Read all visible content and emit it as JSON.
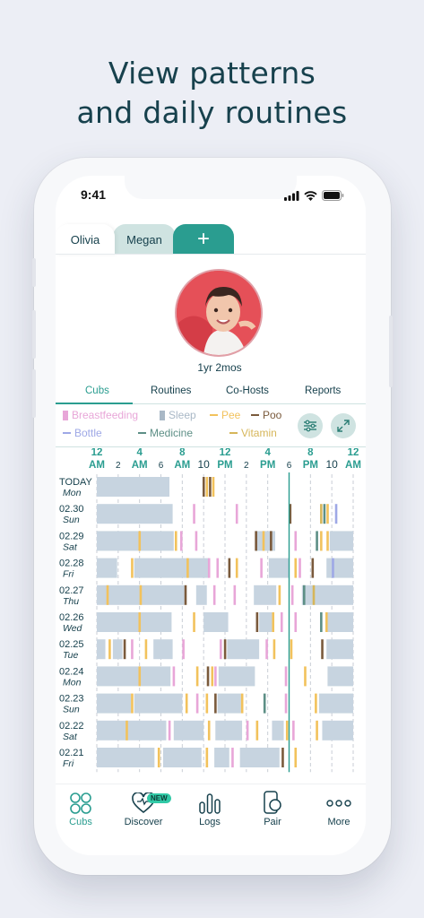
{
  "headline": {
    "line1": "View patterns",
    "line2": "and daily routines"
  },
  "status_bar": {
    "time": "9:41"
  },
  "profile_tabs": [
    {
      "label": "Olivia",
      "active": true
    },
    {
      "label": "Megan",
      "active": false
    }
  ],
  "add_profile_label": "+",
  "profile": {
    "age": "1yr 2mos"
  },
  "sub_tabs": [
    {
      "label": "Cubs",
      "active": true
    },
    {
      "label": "Routines",
      "active": false
    },
    {
      "label": "Co-Hosts",
      "active": false
    },
    {
      "label": "Reports",
      "active": false
    }
  ],
  "legend": [
    {
      "label": "Breastfeeding",
      "color": "#e8a6d8",
      "shape": "square"
    },
    {
      "label": "Sleep",
      "color": "#a9b8c6",
      "shape": "square"
    },
    {
      "label": "Pee",
      "color": "#f2c25c",
      "shape": "dash"
    },
    {
      "label": "Poo",
      "color": "#7a5a3c",
      "shape": "dash"
    },
    {
      "label": "Bottle",
      "color": "#9ea8e6",
      "shape": "dash"
    },
    {
      "label": "Medicine",
      "color": "#5d8f86",
      "shape": "dash"
    },
    {
      "label": "Vitamin",
      "color": "#d6b65a",
      "shape": "dash"
    }
  ],
  "chart_data": {
    "type": "timeline",
    "hours_range": [
      0,
      24
    ],
    "current_time_hour": 18.0,
    "time_ticks": [
      {
        "h": 0,
        "top": "12",
        "bottom": "AM",
        "big": true
      },
      {
        "h": 2,
        "top": "",
        "bottom": "2",
        "big": false
      },
      {
        "h": 4,
        "top": "4",
        "bottom": "AM",
        "big": true
      },
      {
        "h": 6,
        "top": "",
        "bottom": "6",
        "big": false
      },
      {
        "h": 8,
        "top": "8",
        "bottom": "AM",
        "big": true
      },
      {
        "h": 10,
        "top": "",
        "bottom": "10",
        "big": false,
        "dark": true
      },
      {
        "h": 12,
        "top": "12",
        "bottom": "PM",
        "big": true
      },
      {
        "h": 14,
        "top": "",
        "bottom": "2",
        "big": false
      },
      {
        "h": 16,
        "top": "4",
        "bottom": "PM",
        "big": true
      },
      {
        "h": 18,
        "top": "",
        "bottom": "6",
        "big": false
      },
      {
        "h": 20,
        "top": "8",
        "bottom": "PM",
        "big": true
      },
      {
        "h": 22,
        "top": "",
        "bottom": "10",
        "big": false,
        "dark": true
      },
      {
        "h": 24,
        "top": "12",
        "bottom": "AM",
        "big": true
      }
    ],
    "days": [
      {
        "date": "TODAY",
        "weekday": "Mon",
        "sleep": [
          [
            0,
            6.8
          ]
        ],
        "events": [
          [
            10.0,
            "poo"
          ],
          [
            10.3,
            "pee"
          ],
          [
            10.6,
            "poo"
          ],
          [
            10.9,
            "pee"
          ]
        ]
      },
      {
        "date": "02.30",
        "weekday": "Sun",
        "sleep": [
          [
            0,
            7.1
          ]
        ],
        "events": [
          [
            9.1,
            "breastfeeding"
          ],
          [
            13.1,
            "breastfeeding"
          ],
          [
            18.1,
            "poo"
          ],
          [
            21.0,
            "vitamin"
          ],
          [
            21.3,
            "medicine"
          ],
          [
            21.6,
            "pee"
          ],
          [
            22.4,
            "bottle"
          ]
        ]
      },
      {
        "date": "02.29",
        "weekday": "Sat",
        "sleep": [
          [
            0,
            7.2
          ],
          [
            14.8,
            16.7
          ],
          [
            21.8,
            24
          ]
        ],
        "events": [
          [
            4.0,
            "pee"
          ],
          [
            7.4,
            "pee"
          ],
          [
            7.9,
            "breastfeeding"
          ],
          [
            9.3,
            "breastfeeding"
          ],
          [
            14.9,
            "poo"
          ],
          [
            15.6,
            "pee"
          ],
          [
            16.3,
            "poo"
          ],
          [
            18.6,
            "breastfeeding"
          ],
          [
            20.6,
            "medicine"
          ],
          [
            21.0,
            "pee"
          ],
          [
            21.6,
            "pee"
          ]
        ]
      },
      {
        "date": "02.28",
        "weekday": "Fri",
        "sleep": [
          [
            0,
            1.9
          ],
          [
            3.5,
            10.5
          ],
          [
            16.1,
            18.0
          ],
          [
            21.5,
            24
          ]
        ],
        "events": [
          [
            3.3,
            "pee"
          ],
          [
            8.5,
            "pee"
          ],
          [
            10.5,
            "breastfeeding"
          ],
          [
            11.3,
            "breastfeeding"
          ],
          [
            12.4,
            "poo"
          ],
          [
            13.1,
            "pee"
          ],
          [
            15.4,
            "breastfeeding"
          ],
          [
            18.6,
            "pee"
          ],
          [
            19.0,
            "breastfeeding"
          ],
          [
            20.2,
            "poo"
          ],
          [
            22.1,
            "bottle"
          ]
        ]
      },
      {
        "date": "02.27",
        "weekday": "Thu",
        "sleep": [
          [
            0,
            8.2
          ],
          [
            9.3,
            10.3
          ],
          [
            14.7,
            16.8
          ],
          [
            19.2,
            24
          ]
        ],
        "events": [
          [
            1.0,
            "pee"
          ],
          [
            4.1,
            "pee"
          ],
          [
            8.3,
            "poo"
          ],
          [
            11.0,
            "breastfeeding"
          ],
          [
            12.9,
            "breastfeeding"
          ],
          [
            17.1,
            "pee"
          ],
          [
            18.3,
            "breastfeeding"
          ],
          [
            19.4,
            "medicine"
          ],
          [
            20.3,
            "vitamin"
          ]
        ]
      },
      {
        "date": "02.26",
        "weekday": "Wed",
        "sleep": [
          [
            0,
            7.0
          ],
          [
            10.0,
            12.3
          ],
          [
            15.2,
            16.4
          ],
          [
            21.6,
            24
          ]
        ],
        "events": [
          [
            4.0,
            "pee"
          ],
          [
            9.1,
            "pee"
          ],
          [
            15.0,
            "poo"
          ],
          [
            16.5,
            "pee"
          ],
          [
            17.3,
            "breastfeeding"
          ],
          [
            18.6,
            "breastfeeding"
          ],
          [
            21.0,
            "medicine"
          ],
          [
            21.5,
            "pee"
          ]
        ]
      },
      {
        "date": "02.25",
        "weekday": "Tue",
        "sleep": [
          [
            0,
            0.8
          ],
          [
            1.5,
            2.4
          ],
          [
            5.3,
            7.1
          ],
          [
            12.2,
            15.2
          ],
          [
            21.5,
            24
          ]
        ],
        "events": [
          [
            1.2,
            "pee"
          ],
          [
            2.6,
            "poo"
          ],
          [
            3.3,
            "breastfeeding"
          ],
          [
            4.6,
            "pee"
          ],
          [
            8.1,
            "breastfeeding"
          ],
          [
            11.6,
            "breastfeeding"
          ],
          [
            12.0,
            "poo"
          ],
          [
            15.9,
            "breastfeeding"
          ],
          [
            16.6,
            "pee"
          ],
          [
            18.2,
            "pee"
          ],
          [
            21.1,
            "poo"
          ]
        ]
      },
      {
        "date": "02.24",
        "weekday": "Mon",
        "sleep": [
          [
            0,
            6.9
          ],
          [
            11.4,
            14.8
          ],
          [
            21.6,
            24
          ]
        ],
        "events": [
          [
            4.0,
            "pee"
          ],
          [
            7.2,
            "breastfeeding"
          ],
          [
            9.4,
            "pee"
          ],
          [
            10.4,
            "poo"
          ],
          [
            10.8,
            "pee"
          ],
          [
            11.1,
            "breastfeeding"
          ],
          [
            17.7,
            "breastfeeding"
          ],
          [
            19.5,
            "pee"
          ]
        ]
      },
      {
        "date": "02.23",
        "weekday": "Sun",
        "sleep": [
          [
            0,
            3.2
          ],
          [
            3.5,
            8.0
          ],
          [
            11.3,
            13.5
          ],
          [
            20.8,
            24
          ]
        ],
        "events": [
          [
            3.3,
            "pee"
          ],
          [
            8.4,
            "pee"
          ],
          [
            9.4,
            "breastfeeding"
          ],
          [
            10.3,
            "pee"
          ],
          [
            11.1,
            "poo"
          ],
          [
            13.6,
            "pee"
          ],
          [
            15.7,
            "medicine"
          ],
          [
            17.7,
            "breastfeeding"
          ],
          [
            20.5,
            "pee"
          ]
        ]
      },
      {
        "date": "02.22",
        "weekday": "Sat",
        "sleep": [
          [
            0,
            6.5
          ],
          [
            7.2,
            10.0
          ],
          [
            11.1,
            13.6
          ],
          [
            16.4,
            17.5
          ],
          [
            21.1,
            24
          ]
        ],
        "events": [
          [
            2.8,
            "pee"
          ],
          [
            6.8,
            "breastfeeding"
          ],
          [
            10.5,
            "pee"
          ],
          [
            14.1,
            "breastfeeding"
          ],
          [
            15.0,
            "pee"
          ],
          [
            17.8,
            "pee"
          ],
          [
            18.4,
            "breastfeeding"
          ],
          [
            20.6,
            "pee"
          ]
        ]
      },
      {
        "date": "02.21",
        "weekday": "Fri",
        "sleep": [
          [
            0,
            5.4
          ],
          [
            6.2,
            9.8
          ],
          [
            11.0,
            12.4
          ],
          [
            13.4,
            17.1
          ]
        ],
        "events": [
          [
            5.8,
            "pee"
          ],
          [
            10.3,
            "pee"
          ],
          [
            12.7,
            "breastfeeding"
          ],
          [
            17.4,
            "poo"
          ],
          [
            18.6,
            "pee"
          ]
        ]
      }
    ]
  },
  "bottom_nav": [
    {
      "label": "Cubs",
      "icon": "cubs-icon",
      "active": true
    },
    {
      "label": "Discover",
      "icon": "heart-icon",
      "active": false,
      "badge": "NEW"
    },
    {
      "label": "Logs",
      "icon": "bar-chart-icon",
      "active": false
    },
    {
      "label": "Pair",
      "icon": "pair-icon",
      "active": false
    },
    {
      "label": "More",
      "icon": "more-icon",
      "active": false
    }
  ]
}
